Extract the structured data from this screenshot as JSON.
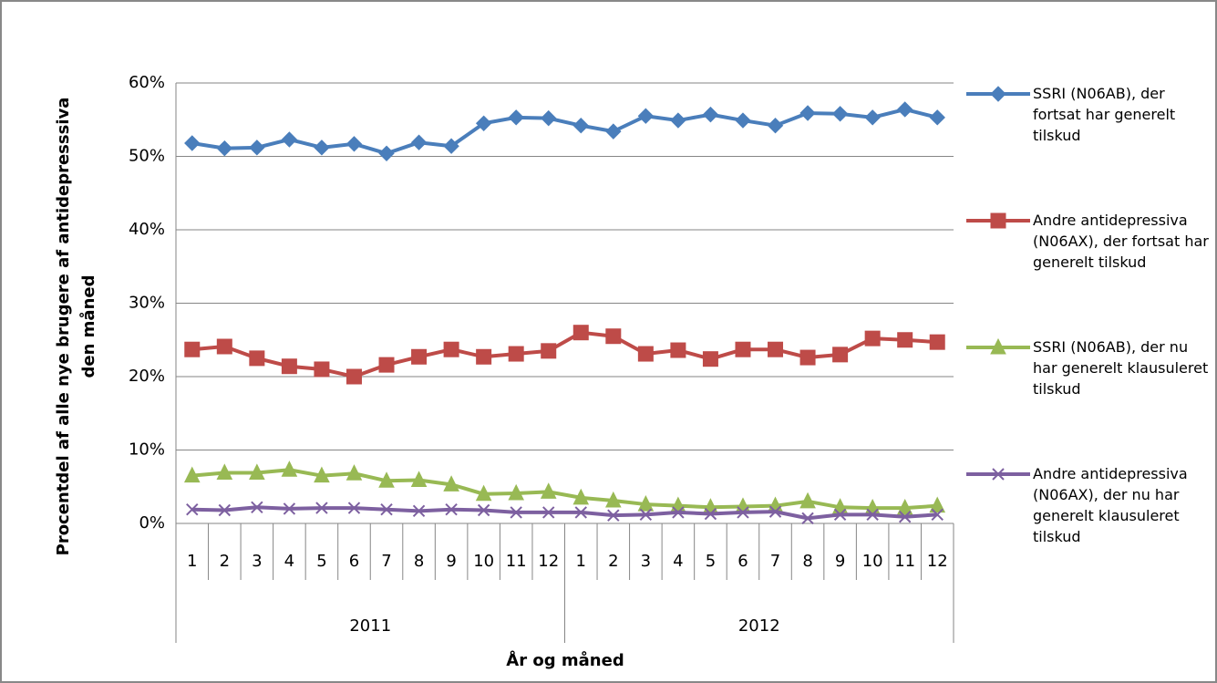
{
  "chart_data": {
    "type": "line",
    "y_label": "Procentdel af alle nye brugere af antidepresssiva den måned",
    "x_label": "År og måned",
    "categories": [
      "1",
      "2",
      "3",
      "4",
      "5",
      "6",
      "7",
      "8",
      "9",
      "10",
      "11",
      "12",
      "1",
      "2",
      "3",
      "4",
      "5",
      "6",
      "7",
      "8",
      "9",
      "10",
      "11",
      "12"
    ],
    "groups": [
      "2011",
      "2012"
    ],
    "ylim": [
      0,
      60
    ],
    "yticks": [
      {
        "value": 0,
        "label": "0%"
      },
      {
        "value": 10,
        "label": "10%"
      },
      {
        "value": 20,
        "label": "20%"
      },
      {
        "value": 30,
        "label": "30%"
      },
      {
        "value": 40,
        "label": "40%"
      },
      {
        "value": 50,
        "label": "50%"
      },
      {
        "value": 60,
        "label": "60%"
      }
    ],
    "grid": true,
    "legend": "right",
    "series": [
      {
        "name": "SSRI (N06AB), der fortsat har generelt tilskud",
        "color": "#4a7ebb",
        "marker": "diamond",
        "values": [
          51.8,
          51.1,
          51.2,
          52.3,
          51.2,
          51.7,
          50.4,
          51.9,
          51.4,
          54.5,
          55.3,
          55.2,
          54.2,
          53.4,
          55.5,
          54.9,
          55.7,
          54.9,
          54.2,
          55.9,
          55.8,
          55.3,
          56.4,
          55.3
        ]
      },
      {
        "name": "Andre antidepressiva (N06AX), der fortsat har generelt tilskud",
        "color": "#be4b48",
        "marker": "square",
        "values": [
          23.7,
          24.1,
          22.5,
          21.4,
          21.0,
          20.0,
          21.6,
          22.7,
          23.7,
          22.7,
          23.1,
          23.5,
          26.0,
          25.5,
          23.1,
          23.6,
          22.4,
          23.7,
          23.7,
          22.6,
          23.0,
          25.2,
          25.0,
          24.7
        ]
      },
      {
        "name": "SSRI (N06AB), der nu har generelt klausuleret tilskud",
        "color": "#98b954",
        "marker": "triangle",
        "values": [
          6.5,
          6.9,
          6.9,
          7.3,
          6.5,
          6.8,
          5.8,
          5.9,
          5.3,
          4.0,
          4.1,
          4.3,
          3.5,
          3.1,
          2.6,
          2.4,
          2.2,
          2.3,
          2.4,
          3.0,
          2.2,
          2.1,
          2.1,
          2.4
        ]
      },
      {
        "name": "Andre antidepressiva (N06AX), der nu har generelt klausuleret tilskud",
        "color": "#7d60a0",
        "marker": "x",
        "values": [
          1.9,
          1.8,
          2.2,
          2.0,
          2.1,
          2.1,
          1.9,
          1.7,
          1.9,
          1.8,
          1.5,
          1.5,
          1.5,
          1.1,
          1.2,
          1.5,
          1.3,
          1.5,
          1.6,
          0.7,
          1.2,
          1.2,
          0.9,
          1.2
        ]
      }
    ]
  }
}
